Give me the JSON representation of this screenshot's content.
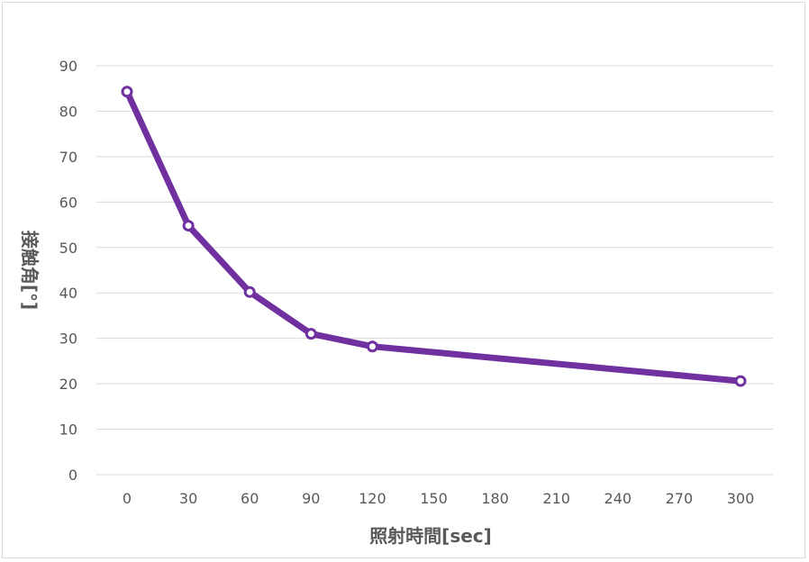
{
  "chart_data": {
    "type": "line",
    "xlabel": "照射時間[sec]",
    "ylabel": "接触角[°]",
    "xlim": [
      0,
      300
    ],
    "ylim": [
      0,
      90
    ],
    "x_ticks": [
      "0",
      "30",
      "60",
      "90",
      "120",
      "150",
      "180",
      "210",
      "240",
      "270",
      "300"
    ],
    "y_ticks": [
      "0",
      "10",
      "20",
      "30",
      "40",
      "50",
      "60",
      "70",
      "80",
      "90"
    ],
    "grid": true,
    "legend": "none",
    "series": [
      {
        "color": "#7030a0",
        "points": [
          {
            "x": 0,
            "y": 84.3
          },
          {
            "x": 30,
            "y": 54.8
          },
          {
            "x": 60,
            "y": 40.2
          },
          {
            "x": 90,
            "y": 31.0
          },
          {
            "x": 120,
            "y": 28.2
          },
          {
            "x": 300,
            "y": 20.6
          }
        ]
      }
    ]
  }
}
